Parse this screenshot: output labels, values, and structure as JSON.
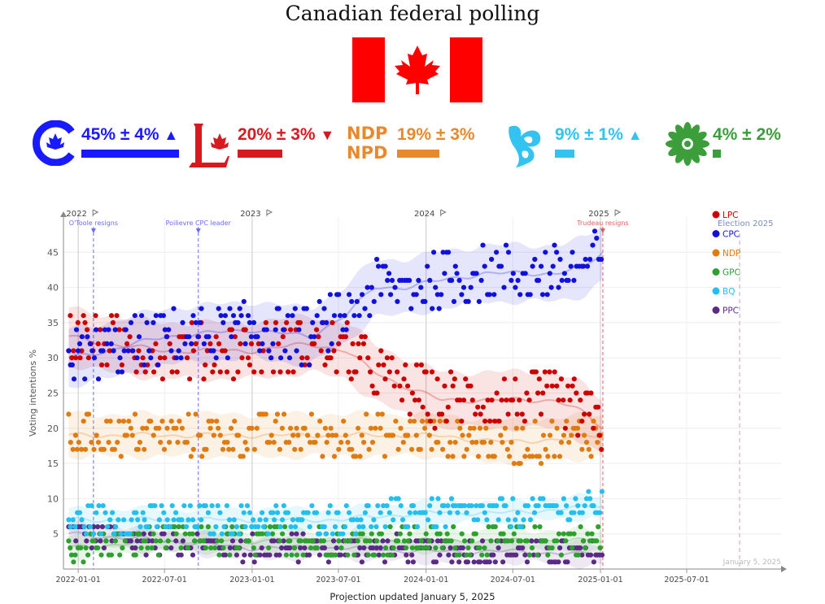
{
  "page": {
    "title": "Canadian federal polling",
    "footer": "Projection updated January 5, 2025"
  },
  "parties": [
    {
      "key": "CPC",
      "value": "45% ± 4%",
      "trend": "▲",
      "color": "#1a1aff",
      "bar_fraction": 0.45
    },
    {
      "key": "LPC",
      "value": "20% ± 3%",
      "trend": "▼",
      "color": "#d71920",
      "bar_fraction": 0.2
    },
    {
      "key": "NDP",
      "logo_line1": "NDP",
      "logo_line2": "NPD",
      "value": "19% ± 3%",
      "trend": "",
      "color": "#e8892b",
      "bar_fraction": 0.19
    },
    {
      "key": "BQ",
      "value": "9% ± 1%",
      "trend": "▲",
      "color": "#33c3f0",
      "bar_fraction": 0.09
    },
    {
      "key": "GPC",
      "value": "4% ± 2%",
      "trend": "",
      "color": "#3b9e3b",
      "bar_fraction": 0.04
    }
  ],
  "chart_data": {
    "type": "scatter",
    "ylabel": "Voting intentions %",
    "xlabel": "",
    "ylim": [
      0,
      50
    ],
    "xlim": [
      "2021-12-01",
      "2026-01-15"
    ],
    "yticks": [
      5,
      10,
      15,
      20,
      25,
      30,
      35,
      40,
      45
    ],
    "xticks": [
      "2022-01-01",
      "2022-07-01",
      "2023-01-01",
      "2023-07-01",
      "2024-01-01",
      "2024-07-01",
      "2025-01-01",
      "2025-07-01"
    ],
    "year_markers": [
      {
        "date": "2022-01-01",
        "label": "2022"
      },
      {
        "date": "2023-01-01",
        "label": "2023"
      },
      {
        "date": "2024-01-01",
        "label": "2024"
      },
      {
        "date": "2025-01-01",
        "label": "2025"
      }
    ],
    "events": [
      {
        "date": "2022-02-02",
        "label": "O'Toole resigns",
        "color": "#6a6aff"
      },
      {
        "date": "2022-09-10",
        "label": "Poilievre CPC leader",
        "color": "#6a6aff"
      },
      {
        "date": "2025-01-06",
        "label": "Trudeau resigns",
        "color": "#e06060"
      }
    ],
    "election_label": "Election 2025",
    "election_date": "2025-10-20",
    "watermark": "January 5, 2025",
    "legend_position": "top-right",
    "series": [
      {
        "name": "LPC",
        "color": "#cc0000",
        "trend": [
          [
            "2021-12-15",
            33
          ],
          [
            "2022-03-01",
            32
          ],
          [
            "2022-07-01",
            31
          ],
          [
            "2023-01-01",
            31
          ],
          [
            "2023-05-01",
            32
          ],
          [
            "2023-07-15",
            31
          ],
          [
            "2023-09-15",
            28
          ],
          [
            "2023-11-15",
            26
          ],
          [
            "2024-02-01",
            24
          ],
          [
            "2024-05-01",
            24
          ],
          [
            "2024-07-01",
            24
          ],
          [
            "2024-10-01",
            24
          ],
          [
            "2024-12-01",
            22
          ],
          [
            "2025-01-05",
            20
          ]
        ],
        "band": 4
      },
      {
        "name": "CPC",
        "color": "#1111dd",
        "trend": [
          [
            "2021-12-15",
            30
          ],
          [
            "2022-03-01",
            31
          ],
          [
            "2022-07-01",
            33
          ],
          [
            "2023-01-01",
            34
          ],
          [
            "2023-05-01",
            33
          ],
          [
            "2023-07-15",
            36
          ],
          [
            "2023-09-15",
            40
          ],
          [
            "2023-11-15",
            40
          ],
          [
            "2024-02-01",
            41
          ],
          [
            "2024-05-01",
            42
          ],
          [
            "2024-07-01",
            42
          ],
          [
            "2024-10-01",
            42
          ],
          [
            "2024-12-01",
            43
          ],
          [
            "2025-01-05",
            45
          ]
        ],
        "band": 4
      },
      {
        "name": "NDP",
        "color": "#e07b10",
        "trend": [
          [
            "2021-12-15",
            19
          ],
          [
            "2022-07-01",
            19
          ],
          [
            "2023-01-01",
            19
          ],
          [
            "2023-07-01",
            19
          ],
          [
            "2024-01-01",
            19
          ],
          [
            "2024-07-01",
            18
          ],
          [
            "2025-01-05",
            19
          ]
        ],
        "band": 3
      },
      {
        "name": "GPC",
        "color": "#2ea02e",
        "trend": [
          [
            "2021-12-15",
            3
          ],
          [
            "2022-07-01",
            4
          ],
          [
            "2023-01-01",
            4
          ],
          [
            "2023-07-01",
            4
          ],
          [
            "2024-01-01",
            4
          ],
          [
            "2024-07-01",
            4
          ],
          [
            "2025-01-05",
            4
          ]
        ],
        "band": 1.5
      },
      {
        "name": "BQ",
        "color": "#22c0ee",
        "trend": [
          [
            "2021-12-15",
            7
          ],
          [
            "2022-07-01",
            7
          ],
          [
            "2023-01-01",
            7
          ],
          [
            "2023-07-01",
            7
          ],
          [
            "2024-01-01",
            8
          ],
          [
            "2024-07-01",
            8
          ],
          [
            "2025-01-05",
            9
          ]
        ],
        "band": 1.5
      },
      {
        "name": "PPC",
        "color": "#5b2a86",
        "trend": [
          [
            "2021-12-15",
            5
          ],
          [
            "2022-07-01",
            4
          ],
          [
            "2023-01-01",
            3
          ],
          [
            "2023-07-01",
            3
          ],
          [
            "2024-01-01",
            2.5
          ],
          [
            "2024-07-01",
            2.5
          ],
          [
            "2025-01-05",
            2
          ]
        ],
        "band": 1.5
      }
    ]
  }
}
